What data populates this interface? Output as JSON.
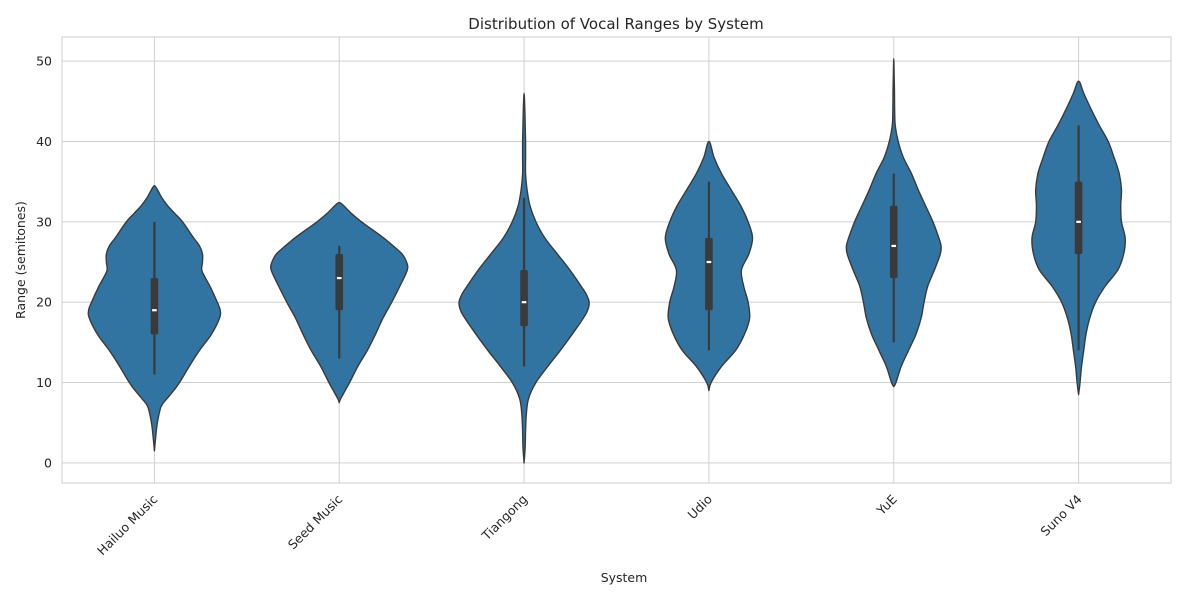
{
  "chart_data": {
    "type": "violin",
    "title": "Distribution of Vocal Ranges by System",
    "xlabel": "System",
    "ylabel": "Range (semitones)",
    "ylim": [
      -2.5,
      53
    ],
    "yticks": [
      0,
      10,
      20,
      30,
      40,
      50
    ],
    "grid": true,
    "colors": {
      "violin_fill": "#3274a1",
      "outline": "#3a3a3a",
      "box": "#3a3a3a",
      "median": "#ffffff",
      "grid": "#d0d0d0"
    },
    "categories": [
      "Hailuo Music",
      "Seed Music",
      "Tiangong",
      "Udio",
      "YuE",
      "Suno V4"
    ],
    "series": [
      {
        "name": "Hailuo Music",
        "whisker": [
          11,
          30
        ],
        "q1": 16,
        "median": 19,
        "q3": 23,
        "density": [
          [
            1.5,
            0.0
          ],
          [
            3,
            0.015
          ],
          [
            5,
            0.04
          ],
          [
            7,
            0.09
          ],
          [
            8,
            0.17
          ],
          [
            9,
            0.26
          ],
          [
            10,
            0.34
          ],
          [
            12,
            0.47
          ],
          [
            14,
            0.61
          ],
          [
            16,
            0.77
          ],
          [
            18,
            0.88
          ],
          [
            19,
            0.89
          ],
          [
            20,
            0.85
          ],
          [
            22,
            0.75
          ],
          [
            23,
            0.69
          ],
          [
            24,
            0.64
          ],
          [
            25,
            0.65
          ],
          [
            26,
            0.65
          ],
          [
            27,
            0.61
          ],
          [
            28,
            0.53
          ],
          [
            30,
            0.38
          ],
          [
            31,
            0.28
          ],
          [
            32,
            0.18
          ],
          [
            33,
            0.1
          ],
          [
            34,
            0.04
          ],
          [
            34.5,
            0.0
          ]
        ]
      },
      {
        "name": "Seed Music",
        "whisker": [
          13,
          27
        ],
        "q1": 19,
        "median": 23,
        "q3": 26,
        "density": [
          [
            7.5,
            0.0
          ],
          [
            8,
            0.02
          ],
          [
            9,
            0.08
          ],
          [
            10,
            0.14
          ],
          [
            12,
            0.25
          ],
          [
            14,
            0.38
          ],
          [
            16,
            0.49
          ],
          [
            18,
            0.59
          ],
          [
            20,
            0.71
          ],
          [
            22,
            0.82
          ],
          [
            24,
            0.92
          ],
          [
            25,
            0.91
          ],
          [
            26,
            0.85
          ],
          [
            27,
            0.73
          ],
          [
            28,
            0.6
          ],
          [
            29,
            0.45
          ],
          [
            30,
            0.3
          ],
          [
            31,
            0.17
          ],
          [
            32,
            0.06
          ],
          [
            32.4,
            0.0
          ]
        ]
      },
      {
        "name": "Tiangong",
        "whisker": [
          12,
          33
        ],
        "q1": 17,
        "median": 20,
        "q3": 24,
        "density": [
          [
            0,
            0.0
          ],
          [
            2,
            0.015
          ],
          [
            4,
            0.02
          ],
          [
            6,
            0.03
          ],
          [
            8,
            0.06
          ],
          [
            10,
            0.16
          ],
          [
            12,
            0.32
          ],
          [
            14,
            0.49
          ],
          [
            16,
            0.65
          ],
          [
            18,
            0.8
          ],
          [
            19,
            0.86
          ],
          [
            20,
            0.88
          ],
          [
            21,
            0.84
          ],
          [
            22,
            0.77
          ],
          [
            24,
            0.62
          ],
          [
            26,
            0.45
          ],
          [
            28,
            0.28
          ],
          [
            30,
            0.16
          ],
          [
            32,
            0.08
          ],
          [
            34,
            0.04
          ],
          [
            36,
            0.02
          ],
          [
            38,
            0.02
          ],
          [
            40,
            0.02
          ],
          [
            42,
            0.015
          ],
          [
            44,
            0.01
          ],
          [
            46,
            0.0
          ]
        ]
      },
      {
        "name": "Udio",
        "whisker": [
          14,
          35
        ],
        "q1": 19,
        "median": 25,
        "q3": 28,
        "density": [
          [
            9,
            0.0
          ],
          [
            10,
            0.03
          ],
          [
            12,
            0.17
          ],
          [
            14,
            0.36
          ],
          [
            16,
            0.48
          ],
          [
            18,
            0.55
          ],
          [
            20,
            0.53
          ],
          [
            22,
            0.47
          ],
          [
            24,
            0.44
          ],
          [
            26,
            0.54
          ],
          [
            28,
            0.59
          ],
          [
            30,
            0.53
          ],
          [
            32,
            0.43
          ],
          [
            34,
            0.3
          ],
          [
            36,
            0.17
          ],
          [
            38,
            0.07
          ],
          [
            40,
            0.0
          ]
        ]
      },
      {
        "name": "YuE",
        "whisker": [
          15,
          36
        ],
        "q1": 23,
        "median": 27,
        "q3": 32,
        "density": [
          [
            9.5,
            0.0
          ],
          [
            10,
            0.03
          ],
          [
            12,
            0.1
          ],
          [
            14,
            0.2
          ],
          [
            16,
            0.3
          ],
          [
            18,
            0.37
          ],
          [
            20,
            0.41
          ],
          [
            22,
            0.46
          ],
          [
            24,
            0.55
          ],
          [
            26,
            0.63
          ],
          [
            27,
            0.64
          ],
          [
            28,
            0.61
          ],
          [
            30,
            0.53
          ],
          [
            32,
            0.43
          ],
          [
            34,
            0.33
          ],
          [
            36,
            0.24
          ],
          [
            38,
            0.13
          ],
          [
            40,
            0.06
          ],
          [
            42,
            0.02
          ],
          [
            44,
            0.012
          ],
          [
            46,
            0.01
          ],
          [
            48,
            0.006
          ],
          [
            50.3,
            0.0
          ]
        ]
      },
      {
        "name": "Suno V4",
        "whisker": [
          14,
          42
        ],
        "q1": 26,
        "median": 30,
        "q3": 35,
        "density": [
          [
            8.5,
            0.0
          ],
          [
            10,
            0.02
          ],
          [
            12,
            0.04
          ],
          [
            14,
            0.07
          ],
          [
            16,
            0.1
          ],
          [
            18,
            0.15
          ],
          [
            20,
            0.23
          ],
          [
            22,
            0.36
          ],
          [
            24,
            0.53
          ],
          [
            26,
            0.61
          ],
          [
            28,
            0.63
          ],
          [
            30,
            0.58
          ],
          [
            32,
            0.57
          ],
          [
            34,
            0.58
          ],
          [
            36,
            0.55
          ],
          [
            38,
            0.48
          ],
          [
            40,
            0.4
          ],
          [
            42,
            0.28
          ],
          [
            44,
            0.17
          ],
          [
            46,
            0.07
          ],
          [
            47.5,
            0.0
          ]
        ]
      }
    ]
  }
}
